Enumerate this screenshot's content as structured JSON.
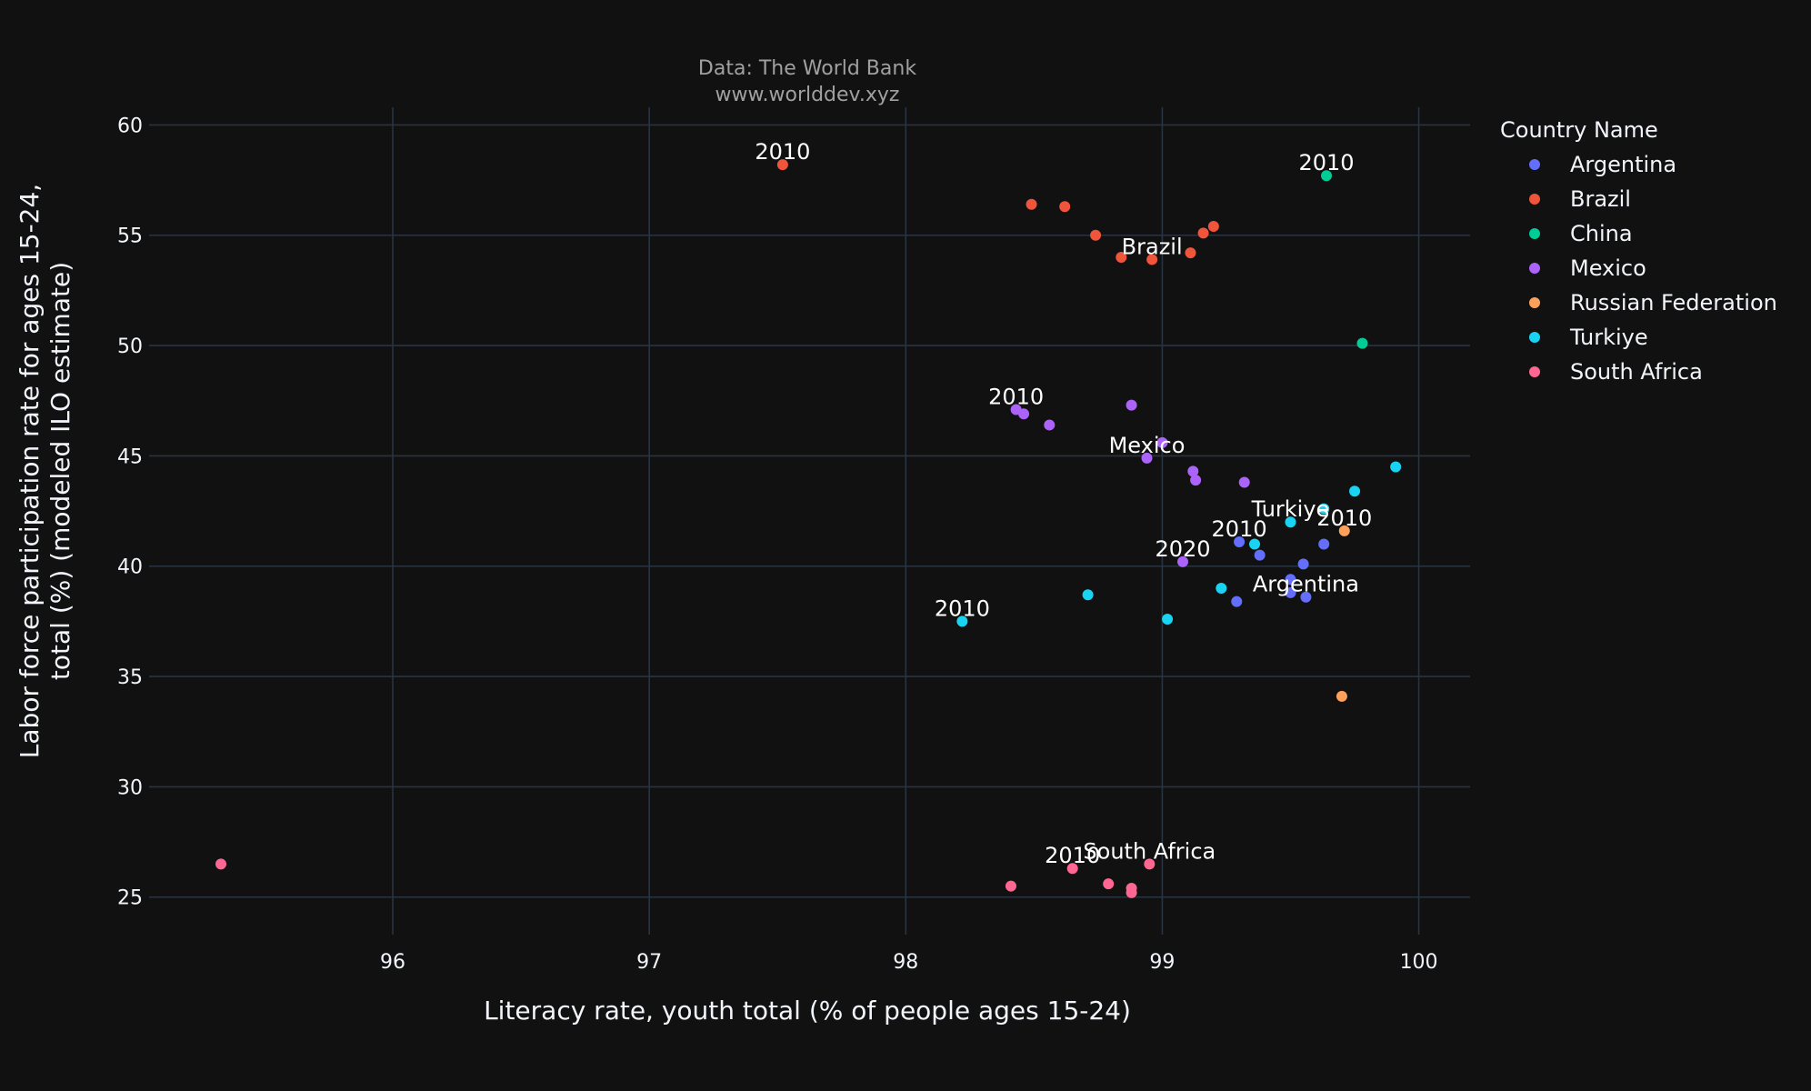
{
  "chart_data": {
    "type": "scatter",
    "source_lines": [
      "Data: The World Bank",
      "www.worlddev.xyz"
    ],
    "xlabel": "Literacy rate, youth total (% of people ages 15-24)",
    "ylabel_lines": [
      "Labor force participation rate for ages 15-24,",
      "total (%) (modeled ILO estimate)"
    ],
    "xlim": [
      95.05,
      100.2
    ],
    "ylim": [
      23.3,
      60.8
    ],
    "xticks": [
      96,
      97,
      98,
      99,
      100
    ],
    "yticks": [
      25,
      30,
      35,
      40,
      45,
      50,
      55,
      60
    ],
    "grid": true,
    "legend": {
      "title": "Country Name",
      "position": "right"
    },
    "series": [
      {
        "name": "Argentina",
        "color": "#636efa",
        "points": [
          [
            99.3,
            41.1
          ],
          [
            99.38,
            40.5
          ],
          [
            99.55,
            40.1
          ],
          [
            99.63,
            41.0
          ],
          [
            99.5,
            39.4
          ],
          [
            99.5,
            38.8
          ],
          [
            99.56,
            38.6
          ],
          [
            99.29,
            38.4
          ]
        ]
      },
      {
        "name": "Brazil",
        "color": "#EF553B",
        "points": [
          [
            97.52,
            58.2
          ],
          [
            98.49,
            56.4
          ],
          [
            98.62,
            56.3
          ],
          [
            98.74,
            55.0
          ],
          [
            98.84,
            54.0
          ],
          [
            98.96,
            53.9
          ],
          [
            99.11,
            54.2
          ],
          [
            99.16,
            55.1
          ],
          [
            99.2,
            55.4
          ]
        ]
      },
      {
        "name": "China",
        "color": "#00cc96",
        "points": [
          [
            99.64,
            57.7
          ],
          [
            99.78,
            50.1
          ]
        ]
      },
      {
        "name": "Mexico",
        "color": "#ab63fa",
        "points": [
          [
            98.43,
            47.1
          ],
          [
            98.46,
            46.9
          ],
          [
            98.56,
            46.4
          ],
          [
            98.88,
            47.3
          ],
          [
            98.94,
            44.9
          ],
          [
            99.0,
            45.6
          ],
          [
            99.12,
            44.3
          ],
          [
            99.13,
            43.9
          ],
          [
            99.32,
            43.8
          ],
          [
            99.08,
            40.2
          ]
        ]
      },
      {
        "name": "Russian Federation",
        "color": "#FFA15A",
        "points": [
          [
            99.71,
            41.6
          ],
          [
            99.7,
            34.1
          ]
        ]
      },
      {
        "name": "Turkiye",
        "color": "#19d3f3",
        "points": [
          [
            98.22,
            37.5
          ],
          [
            98.71,
            38.7
          ],
          [
            99.02,
            37.6
          ],
          [
            99.23,
            39.0
          ],
          [
            99.36,
            41.0
          ],
          [
            99.5,
            42.0
          ],
          [
            99.63,
            42.6
          ],
          [
            99.75,
            43.4
          ],
          [
            99.91,
            44.5
          ]
        ]
      },
      {
        "name": "South Africa",
        "color": "#FF6692",
        "points": [
          [
            95.33,
            26.5
          ],
          [
            98.41,
            25.5
          ],
          [
            98.65,
            26.3
          ],
          [
            98.79,
            25.6
          ],
          [
            98.88,
            25.4
          ],
          [
            98.88,
            25.2
          ],
          [
            98.95,
            26.5
          ]
        ]
      }
    ],
    "annotations": [
      {
        "text": "2010",
        "x": 97.52,
        "y": 58.2
      },
      {
        "text": "2010",
        "x": 99.64,
        "y": 57.7
      },
      {
        "text": "Brazil",
        "x": 98.96,
        "y": 53.9
      },
      {
        "text": "2010",
        "x": 98.43,
        "y": 47.1
      },
      {
        "text": "Mexico",
        "x": 98.94,
        "y": 44.9
      },
      {
        "text": "Turkiye",
        "x": 99.5,
        "y": 42.0
      },
      {
        "text": "2010",
        "x": 99.71,
        "y": 41.6
      },
      {
        "text": "2010",
        "x": 99.3,
        "y": 41.1
      },
      {
        "text": "2020",
        "x": 99.08,
        "y": 40.2
      },
      {
        "text": "Argentina",
        "x": 99.56,
        "y": 38.6
      },
      {
        "text": "2010",
        "x": 98.22,
        "y": 37.5
      },
      {
        "text": "2010",
        "x": 98.65,
        "y": 26.3
      },
      {
        "text": "South Africa",
        "x": 98.95,
        "y": 26.5
      }
    ]
  }
}
